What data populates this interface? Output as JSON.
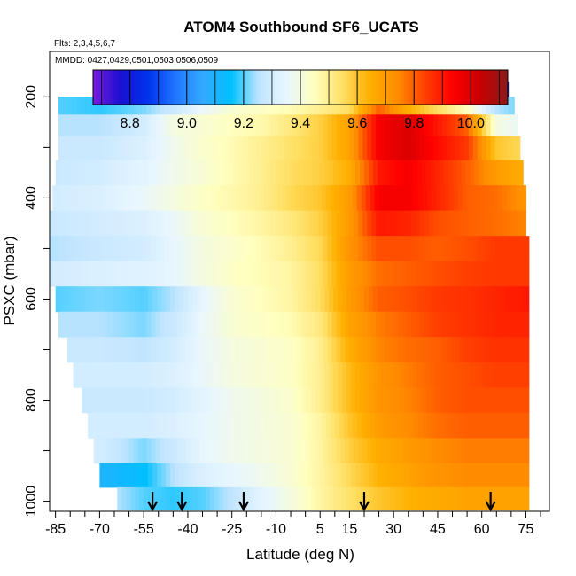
{
  "chart_data": {
    "type": "heatmap",
    "title": "ATOM4 Southbound SF6_UCATS",
    "flights_note": "Flts: 2,3,4,5,6,7",
    "dates_note": "MMDD: 0427,0429,0501,0503,0506,0509",
    "xlabel": "Latitude (deg N)",
    "ylabel": "PSXC (mbar)",
    "xlim": [
      -87,
      83
    ],
    "ylim": [
      1020,
      110
    ],
    "x_ticks": [
      -85,
      -70,
      -55,
      -40,
      -25,
      -10,
      5,
      15,
      30,
      45,
      60,
      75
    ],
    "y_ticks": [
      200,
      400,
      600,
      800,
      1000
    ],
    "colorbar": {
      "range": [
        8.67,
        10.13
      ],
      "ticks": [
        "8.8",
        "9.0",
        "9.2",
        "9.4",
        "9.6",
        "9.8",
        "10.0"
      ],
      "tick_values": [
        8.8,
        9.0,
        9.2,
        9.4,
        9.6,
        9.8,
        10.0
      ],
      "colors": [
        "#7a1be0",
        "#1a10d0",
        "#0033ee",
        "#2277ff",
        "#33aaff",
        "#00c0ff",
        "#bfe4ff",
        "#e8f6ff",
        "#ffffc0",
        "#ffe066",
        "#ffb000",
        "#ff8c00",
        "#ff4000",
        "#ff0000",
        "#c80000",
        "#8b1a1a"
      ]
    },
    "lat_nodes": [
      -85,
      -70,
      -55,
      -45,
      -35,
      -25,
      -15,
      -5,
      5,
      15,
      25,
      35,
      45,
      55,
      65,
      75
    ],
    "rows": [
      {
        "p": 185,
        "lat_min": -52,
        "lat_max": 69,
        "values": [
          9.45,
          9.45,
          9.45,
          9.45,
          9.45,
          9.44,
          9.44,
          9.45,
          9.46,
          9.47,
          9.45,
          9.3,
          9.1,
          9.0,
          8.82,
          8.8
        ]
      },
      {
        "p": 215,
        "lat_min": -84,
        "lat_max": 71,
        "values": [
          9.2,
          9.18,
          9.22,
          9.28,
          9.36,
          9.42,
          9.44,
          9.46,
          9.5,
          9.55,
          9.8,
          9.65,
          9.55,
          9.45,
          9.25,
          9.2
        ]
      },
      {
        "p": 255,
        "lat_min": -84,
        "lat_max": 72,
        "values": [
          9.25,
          9.25,
          9.3,
          9.4,
          9.42,
          9.45,
          9.47,
          9.52,
          9.58,
          9.68,
          9.95,
          10.0,
          9.9,
          9.8,
          9.4,
          9.35
        ]
      },
      {
        "p": 300,
        "lat_min": -84,
        "lat_max": 73,
        "values": [
          9.28,
          9.28,
          9.32,
          9.38,
          9.43,
          9.46,
          9.5,
          9.54,
          9.58,
          9.68,
          9.95,
          10.0,
          9.92,
          9.85,
          9.6,
          9.55
        ]
      },
      {
        "p": 350,
        "lat_min": -85,
        "lat_max": 74,
        "values": [
          9.28,
          9.3,
          9.34,
          9.38,
          9.42,
          9.46,
          9.5,
          9.55,
          9.58,
          9.65,
          9.9,
          9.95,
          9.88,
          9.8,
          9.7,
          9.65
        ]
      },
      {
        "p": 400,
        "lat_min": -86,
        "lat_max": 75,
        "values": [
          9.3,
          9.32,
          9.36,
          9.4,
          9.44,
          9.47,
          9.5,
          9.56,
          9.6,
          9.7,
          9.95,
          9.95,
          9.88,
          9.8,
          9.78,
          9.72
        ]
      },
      {
        "p": 450,
        "lat_min": -87,
        "lat_max": 75,
        "values": [
          9.28,
          9.3,
          9.32,
          9.36,
          9.42,
          9.45,
          9.48,
          9.52,
          9.58,
          9.7,
          9.9,
          9.88,
          9.82,
          9.8,
          9.78,
          9.75
        ]
      },
      {
        "p": 500,
        "lat_min": -87,
        "lat_max": 76,
        "values": [
          9.25,
          9.28,
          9.3,
          9.35,
          9.4,
          9.43,
          9.46,
          9.5,
          9.56,
          9.72,
          9.82,
          9.82,
          9.8,
          9.82,
          9.85,
          9.85
        ]
      },
      {
        "p": 550,
        "lat_min": -87,
        "lat_max": 76,
        "values": [
          9.3,
          9.32,
          9.33,
          9.35,
          9.4,
          9.44,
          9.46,
          9.48,
          9.55,
          9.7,
          9.78,
          9.8,
          9.82,
          9.84,
          9.85,
          9.85
        ]
      },
      {
        "p": 600,
        "lat_min": -85,
        "lat_max": 76,
        "values": [
          9.2,
          9.22,
          9.2,
          9.25,
          9.35,
          9.42,
          9.45,
          9.48,
          9.55,
          9.7,
          9.8,
          9.82,
          9.85,
          9.86,
          9.88,
          9.9
        ]
      },
      {
        "p": 650,
        "lat_min": -84,
        "lat_max": 76,
        "values": [
          9.25,
          9.25,
          9.22,
          9.28,
          9.36,
          9.42,
          9.44,
          9.46,
          9.52,
          9.68,
          9.76,
          9.8,
          9.84,
          9.86,
          9.88,
          9.88
        ]
      },
      {
        "p": 700,
        "lat_min": -81,
        "lat_max": 76,
        "values": [
          9.28,
          9.28,
          9.26,
          9.3,
          9.36,
          9.4,
          9.42,
          9.44,
          9.5,
          9.65,
          9.75,
          9.78,
          9.8,
          9.84,
          9.86,
          9.86
        ]
      },
      {
        "p": 750,
        "lat_min": -79,
        "lat_max": 76,
        "values": [
          9.3,
          9.3,
          9.3,
          9.32,
          9.36,
          9.4,
          9.42,
          9.44,
          9.5,
          9.62,
          9.72,
          9.76,
          9.8,
          9.82,
          9.84,
          9.84
        ]
      },
      {
        "p": 800,
        "lat_min": -76,
        "lat_max": 76,
        "values": [
          9.28,
          9.28,
          9.28,
          9.3,
          9.34,
          9.38,
          9.4,
          9.43,
          9.5,
          9.62,
          9.72,
          9.75,
          9.8,
          9.82,
          9.82,
          9.82
        ]
      },
      {
        "p": 850,
        "lat_min": -74,
        "lat_max": 76,
        "values": [
          9.3,
          9.3,
          9.3,
          9.32,
          9.35,
          9.38,
          9.4,
          9.42,
          9.48,
          9.6,
          9.7,
          9.74,
          9.78,
          9.8,
          9.8,
          9.8
        ]
      },
      {
        "p": 900,
        "lat_min": -72,
        "lat_max": 76,
        "values": [
          9.3,
          9.3,
          9.22,
          9.28,
          9.35,
          9.38,
          9.4,
          9.42,
          9.48,
          9.58,
          9.66,
          9.7,
          9.74,
          9.76,
          9.76,
          9.76
        ]
      },
      {
        "p": 950,
        "lat_min": -70,
        "lat_max": 76,
        "values": [
          9.2,
          9.1,
          9.15,
          9.25,
          9.32,
          9.35,
          9.38,
          9.42,
          9.48,
          9.56,
          9.64,
          9.68,
          9.72,
          9.74,
          9.74,
          9.74
        ]
      },
      {
        "p": 995,
        "lat_min": -64,
        "lat_max": 76,
        "values": [
          9.3,
          9.28,
          9.2,
          9.18,
          9.2,
          9.26,
          9.34,
          9.4,
          9.48,
          9.54,
          9.6,
          9.64,
          9.66,
          9.68,
          9.68,
          9.68
        ]
      }
    ],
    "arrow_latitudes": [
      -52,
      -42,
      -21,
      20,
      63
    ]
  }
}
